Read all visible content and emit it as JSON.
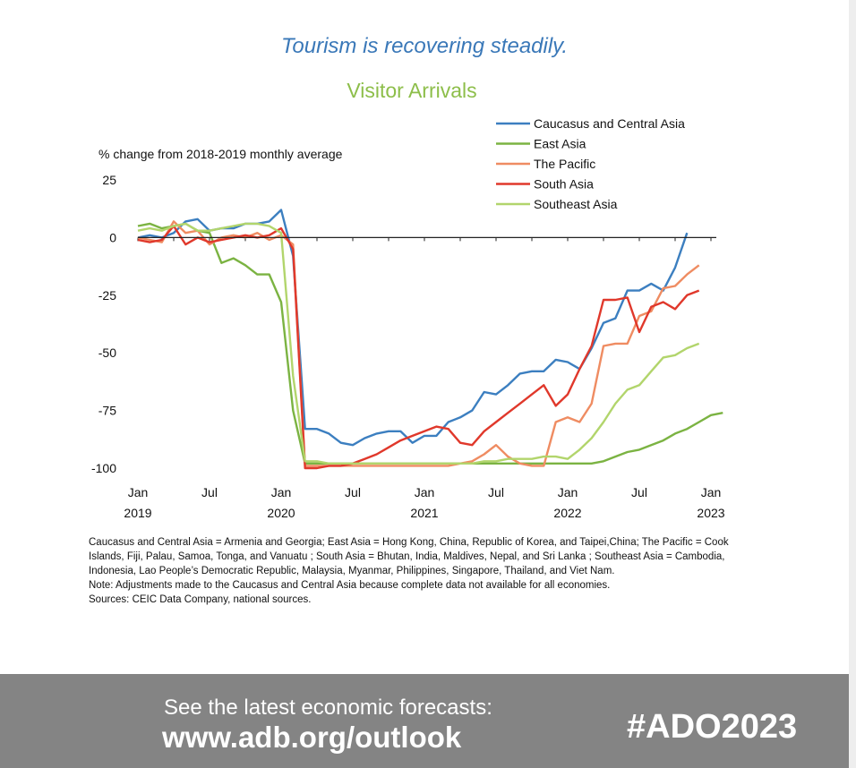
{
  "headline": "Tourism is recovering steadily.",
  "chart_data": {
    "type": "line",
    "title": "Visitor Arrivals",
    "ylabel": "% change from 2018-2019 monthly average",
    "xlabel": "",
    "ylim": [
      -100,
      25
    ],
    "yticks": [
      25,
      0,
      -25,
      -50,
      -75,
      -100
    ],
    "x_range": [
      0,
      48
    ],
    "x_ticks": [
      {
        "m": 0,
        "line1": "Jan",
        "line2": "2019"
      },
      {
        "m": 6,
        "line1": "Jul",
        "line2": ""
      },
      {
        "m": 12,
        "line1": "Jan",
        "line2": "2020"
      },
      {
        "m": 18,
        "line1": "Jul",
        "line2": ""
      },
      {
        "m": 24,
        "line1": "Jan",
        "line2": "2021"
      },
      {
        "m": 30,
        "line1": "Jul",
        "line2": ""
      },
      {
        "m": 36,
        "line1": "Jan",
        "line2": "2022"
      },
      {
        "m": 42,
        "line1": "Jul",
        "line2": ""
      },
      {
        "m": 48,
        "line1": "Jan",
        "line2": "2023"
      }
    ],
    "grid": false,
    "legend": "top-right",
    "series": [
      {
        "name": "Caucasus and Central Asia",
        "color": "#3c7fc0",
        "values": [
          0,
          1,
          0,
          2,
          7,
          8,
          3,
          4,
          4,
          6,
          6,
          7,
          12,
          -8,
          -83,
          -83,
          -85,
          -89,
          -90,
          -87,
          -85,
          -84,
          -84,
          -89,
          -86,
          -86,
          -80,
          -78,
          -75,
          -67,
          -68,
          -64,
          -59,
          -58,
          -58,
          -53,
          -54,
          -57,
          -48,
          -37,
          -35,
          -23,
          -23,
          -20,
          -23,
          -13,
          2
        ]
      },
      {
        "name": "East Asia",
        "color": "#7bb342",
        "values": [
          5,
          6,
          4,
          5,
          6,
          3,
          2,
          -11,
          -9,
          -12,
          -16,
          -16,
          -28,
          -75,
          -98,
          -98,
          -98,
          -98,
          -98,
          -98,
          -98,
          -98,
          -98,
          -98,
          -98,
          -98,
          -98,
          -98,
          -98,
          -98,
          -98,
          -98,
          -98,
          -98,
          -98,
          -98,
          -98,
          -98,
          -98,
          -97,
          -95,
          -93,
          -92,
          -90,
          -88,
          -85,
          -83,
          -80,
          -77,
          -76
        ]
      },
      {
        "name": "The Pacific",
        "color": "#ef8c62",
        "values": [
          0,
          -1,
          -2,
          7,
          2,
          3,
          -3,
          0,
          1,
          0,
          2,
          -1,
          1,
          -3,
          -99,
          -99,
          -99,
          -99,
          -99,
          -99,
          -99,
          -99,
          -99,
          -99,
          -99,
          -99,
          -99,
          -98,
          -97,
          -94,
          -90,
          -95,
          -98,
          -99,
          -99,
          -80,
          -78,
          -80,
          -72,
          -47,
          -46,
          -46,
          -34,
          -32,
          -22,
          -21,
          -16,
          -12
        ]
      },
      {
        "name": "South Asia",
        "color": "#e0382b",
        "values": [
          -1,
          -2,
          -1,
          5,
          -3,
          0,
          -2,
          -1,
          0,
          1,
          0,
          1,
          4,
          -5,
          -100,
          -100,
          -99,
          -99,
          -98,
          -96,
          -94,
          -91,
          -88,
          -86,
          -84,
          -82,
          -83,
          -89,
          -90,
          -84,
          -80,
          -76,
          -72,
          -68,
          -64,
          -73,
          -68,
          -57,
          -47,
          -27,
          -27,
          -26,
          -41,
          -30,
          -28,
          -31,
          -25,
          -23
        ]
      },
      {
        "name": "Southeast Asia",
        "color": "#b2d56c",
        "values": [
          3,
          4,
          3,
          5,
          6,
          3,
          3,
          4,
          5,
          6,
          6,
          5,
          2,
          -60,
          -97,
          -97,
          -98,
          -98,
          -98,
          -98,
          -98,
          -98,
          -98,
          -98,
          -98,
          -98,
          -98,
          -98,
          -98,
          -97,
          -97,
          -96,
          -96,
          -96,
          -95,
          -95,
          -96,
          -92,
          -87,
          -80,
          -72,
          -66,
          -64,
          -58,
          -52,
          -51,
          -48,
          -46
        ]
      }
    ]
  },
  "notes": {
    "definitions": "Caucasus and Central Asia = Armenia and Georgia; East Asia = Hong Kong, China, Republic of Korea, and Taipei,China; The Pacific = Cook Islands, Fiji, Palau, Samoa, Tonga, and Vanuatu ; South Asia = Bhutan, India, Maldives, Nepal, and Sri Lanka ; Southeast Asia = Cambodia, Indonesia, Lao People’s Democratic Republic, Malaysia, Myanmar, Philippines, Singapore, Thailand, and Viet Nam.",
    "note": "Note: Adjustments made to the Caucasus and Central Asia because complete data not available for all economies.",
    "sources": "Sources: CEIC Data Company, national sources."
  },
  "footer": {
    "cta": "See the latest economic forecasts:",
    "url": "www.adb.org/outlook",
    "hashtag": "#ADO2023"
  }
}
